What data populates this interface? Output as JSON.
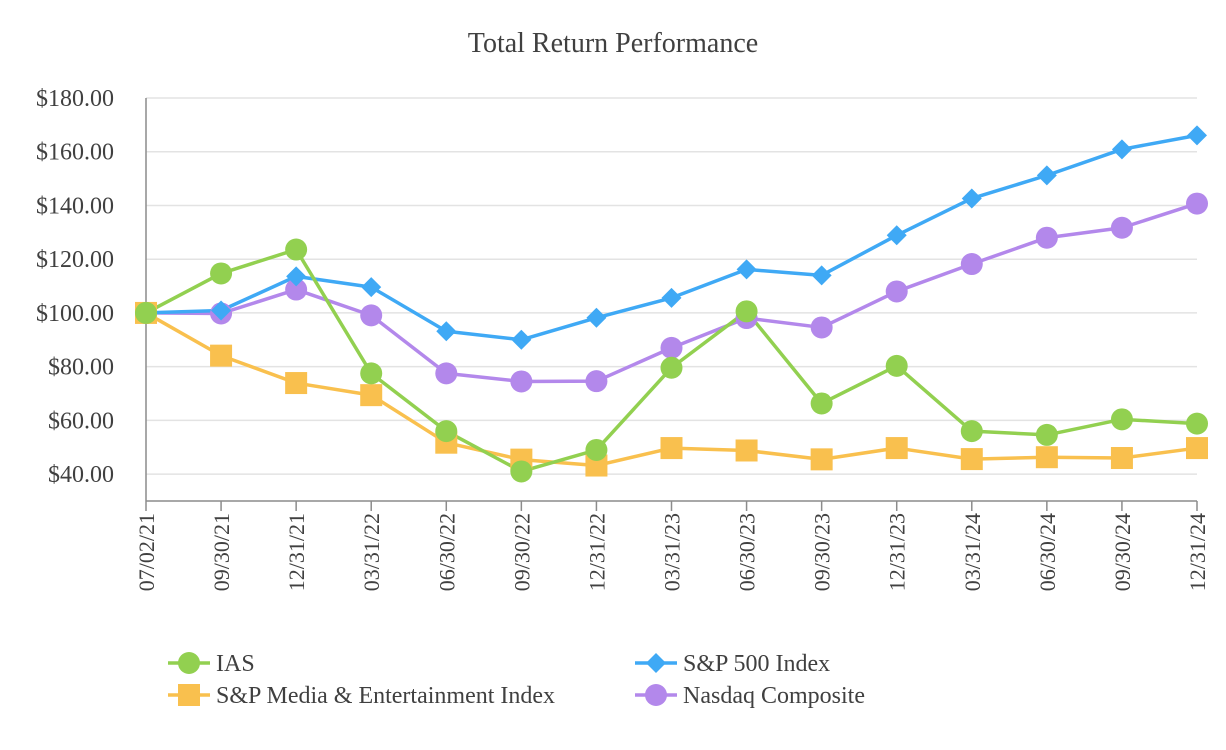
{
  "chart_data": {
    "type": "line",
    "title": "Total Return Performance",
    "categories": [
      "07/02/21",
      "09/30/21",
      "12/31/21",
      "03/31/22",
      "06/30/22",
      "09/30/22",
      "12/31/22",
      "03/31/23",
      "06/30/23",
      "09/30/23",
      "12/31/23",
      "03/31/24",
      "06/30/24",
      "09/30/24",
      "12/31/24"
    ],
    "ylim": [
      30,
      180
    ],
    "yticks": [
      40,
      60,
      80,
      100,
      120,
      140,
      160,
      180
    ],
    "ytick_labels": [
      "$40.00",
      "$60.00",
      "$80.00",
      "$100.00",
      "$120.00",
      "$140.00",
      "$160.00",
      "$180.00"
    ],
    "grid": true,
    "legend_position": "bottom",
    "series": [
      {
        "name": "IAS",
        "color": "#92d050",
        "marker": "circle",
        "values": [
          100.0,
          114.7,
          123.6,
          77.5,
          56.0,
          41.0,
          49.0,
          79.6,
          100.6,
          66.3,
          80.3,
          56.0,
          54.6,
          60.4,
          58.8
        ]
      },
      {
        "name": "S&P 500 Index",
        "color": "#3fa9f5",
        "marker": "diamond",
        "values": [
          100.0,
          100.9,
          113.6,
          109.6,
          93.2,
          90.0,
          98.2,
          105.6,
          116.2,
          114.0,
          128.9,
          142.6,
          151.2,
          160.9,
          166.1
        ]
      },
      {
        "name": "S&P Media & Entertainment Index",
        "color": "#f9c04e",
        "marker": "square",
        "values": [
          100.0,
          84.1,
          73.9,
          69.4,
          51.7,
          45.4,
          43.2,
          49.7,
          48.8,
          45.5,
          49.7,
          45.6,
          46.3,
          46.0,
          49.7
        ]
      },
      {
        "name": "Nasdaq Composite",
        "color": "#b388eb",
        "marker": "circle",
        "values": [
          100.0,
          99.8,
          108.7,
          99.1,
          77.5,
          74.5,
          74.6,
          87.0,
          98.1,
          94.6,
          108.0,
          118.2,
          128.0,
          131.7,
          140.7
        ]
      }
    ],
    "legend": [
      {
        "label": "IAS",
        "series": 0
      },
      {
        "label": "S&P 500 Index",
        "series": 1
      },
      {
        "label": "S&P Media & Entertainment Index",
        "series": 2
      },
      {
        "label": "Nasdaq Composite",
        "series": 3
      }
    ]
  }
}
